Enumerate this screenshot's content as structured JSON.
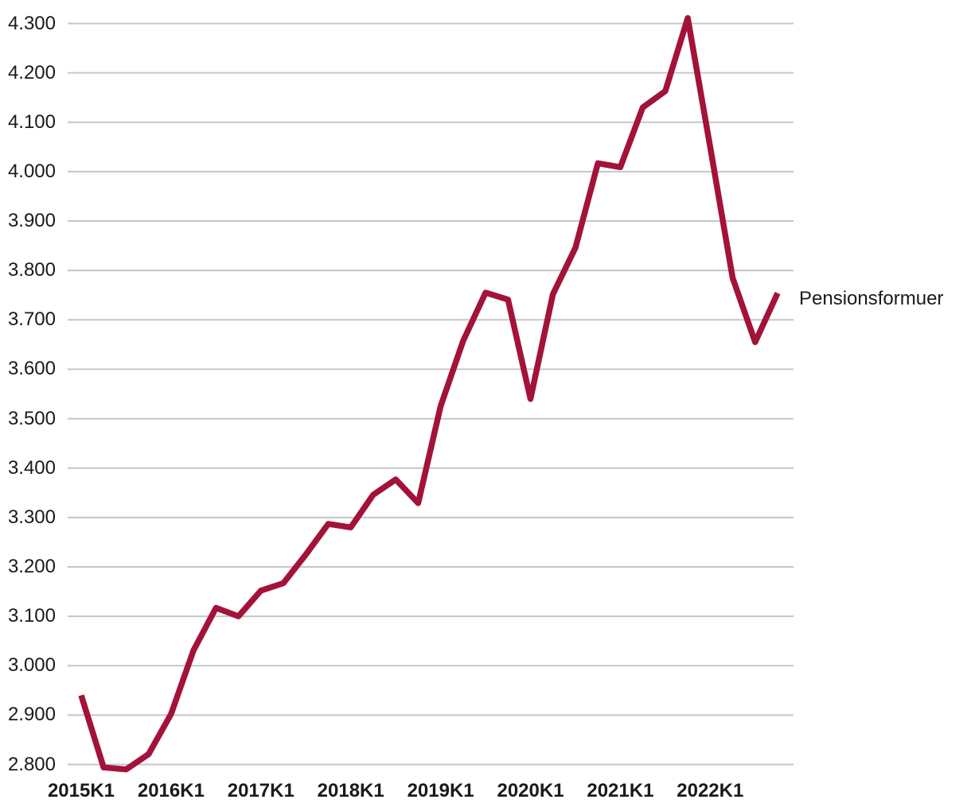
{
  "chart_data": {
    "type": "line",
    "title": "",
    "xlabel": "",
    "ylabel": "",
    "series_label": "Pensionsformuer",
    "x": [
      "2015K1",
      "2015K2",
      "2015K3",
      "2015K4",
      "2016K1",
      "2016K2",
      "2016K3",
      "2016K4",
      "2017K1",
      "2017K2",
      "2017K3",
      "2017K4",
      "2018K1",
      "2018K2",
      "2018K3",
      "2018K4",
      "2019K1",
      "2019K2",
      "2019K3",
      "2019K4",
      "2020K1",
      "2020K2",
      "2020K3",
      "2020K4",
      "2021K1",
      "2021K2",
      "2021K3",
      "2021K4",
      "2022K1",
      "2022K2",
      "2022K3",
      "2022K4"
    ],
    "series": [
      {
        "name": "Pensionsformuer",
        "values": [
          2940,
          2794,
          2790,
          2821,
          2902,
          3031,
          3117,
          3100,
          3152,
          3167,
          3225,
          3287,
          3280,
          3346,
          3377,
          3329,
          3525,
          3657,
          3755,
          3741,
          3540,
          3752,
          3846,
          4017,
          4009,
          4130,
          4163,
          4311,
          4050,
          3785,
          3655,
          3754
        ]
      }
    ],
    "x_tick_labels": [
      "2015K1",
      "2016K1",
      "2017K1",
      "2018K1",
      "2019K1",
      "2020K1",
      "2021K1",
      "2022K1"
    ],
    "y_ticks": [
      {
        "value": 2800,
        "label": "2.800"
      },
      {
        "value": 2900,
        "label": "2.900"
      },
      {
        "value": 3000,
        "label": "3.000"
      },
      {
        "value": 3100,
        "label": "3.100"
      },
      {
        "value": 3200,
        "label": "3.200"
      },
      {
        "value": 3300,
        "label": "3.300"
      },
      {
        "value": 3400,
        "label": "3.400"
      },
      {
        "value": 3500,
        "label": "3.500"
      },
      {
        "value": 3600,
        "label": "3.600"
      },
      {
        "value": 3700,
        "label": "3.700"
      },
      {
        "value": 3800,
        "label": "3.800"
      },
      {
        "value": 3900,
        "label": "3.900"
      },
      {
        "value": 4000,
        "label": "4.000"
      },
      {
        "value": 4100,
        "label": "4.100"
      },
      {
        "value": 4200,
        "label": "4.200"
      },
      {
        "value": 4300,
        "label": "4.300"
      }
    ],
    "ylim": [
      2800,
      4300
    ],
    "grid": "horizontal",
    "legend_position": "right-of-last-point",
    "colors": {
      "line": "#a31238",
      "grid": "#c6c6c6",
      "text": "#1a1a1a",
      "background": "#ffffff"
    }
  }
}
